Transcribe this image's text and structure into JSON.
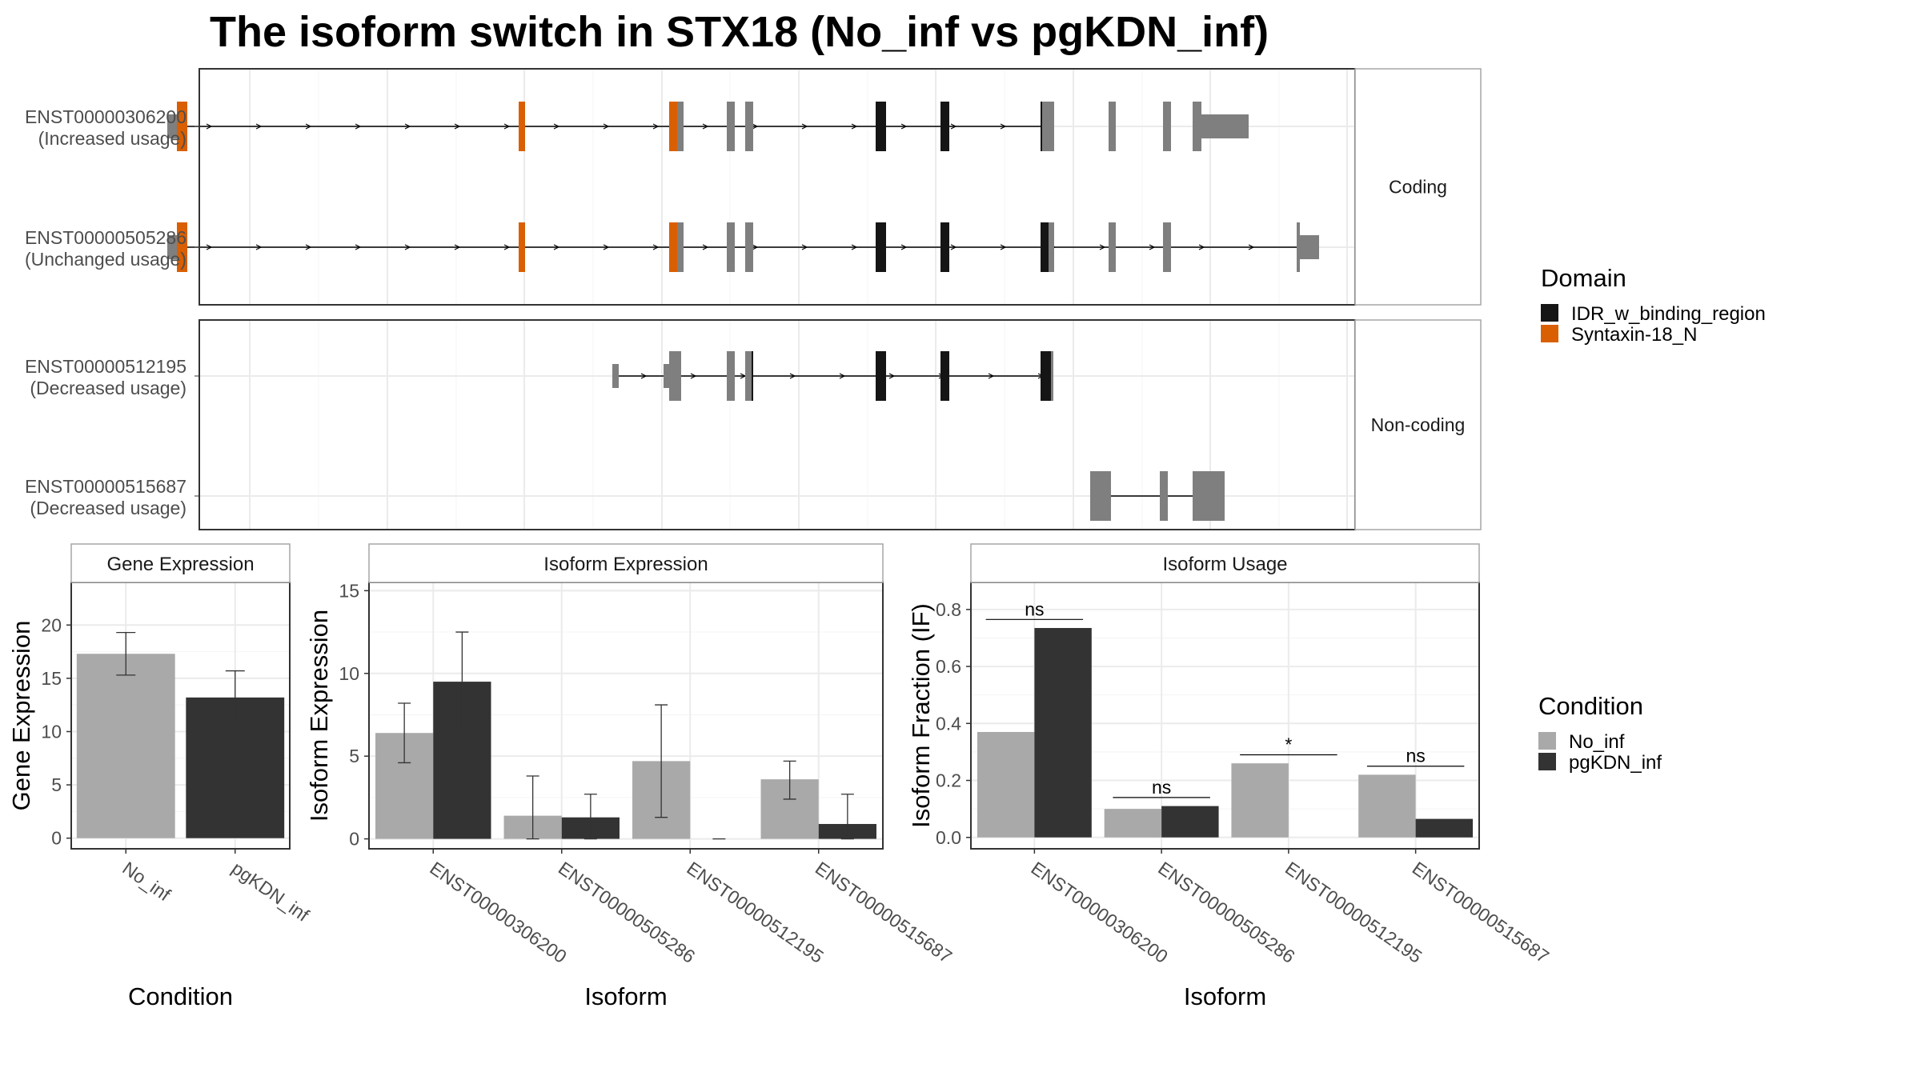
{
  "title": "The isoform switch in STX18 (No_inf vs pgKDN_inf)",
  "colors": {
    "utr": "#7f7f7f",
    "IDR_w_binding_region": "#151515",
    "Syntaxin-18_N": "#d95f02",
    "No_inf": "#a9a9a9",
    "pgKDN_inf": "#333333",
    "panel_border": "#333333",
    "grid": "#ebebeb",
    "strip_bg": "#ffffff",
    "strip_border": "#a6a6a6"
  },
  "transcripts": [
    {
      "id": "ENST00000306200",
      "usage": "(Increased usage)",
      "group": "Coding",
      "line": [
        222,
        1305
      ],
      "exons": [
        [
          209,
          221,
          "utr",
          0.5
        ],
        [
          221,
          234,
          "Syntaxin-18_N",
          1
        ],
        [
          648,
          656,
          "Syntaxin-18_N",
          1
        ],
        [
          836,
          846,
          "Syntaxin-18_N",
          1
        ],
        [
          846,
          854,
          "utr",
          1
        ],
        [
          908,
          918,
          "utr",
          1
        ],
        [
          931,
          941,
          "utr",
          1
        ],
        [
          1094,
          1107,
          "IDR_w_binding_region",
          1
        ],
        [
          1175,
          1186,
          "IDR_w_binding_region",
          1
        ],
        [
          1300,
          1302,
          "IDR_w_binding_region",
          1
        ],
        [
          1302,
          1317,
          "utr",
          1
        ],
        [
          1385,
          1394,
          "utr",
          1
        ],
        [
          1453,
          1463,
          "utr",
          1
        ],
        [
          1490,
          1501,
          "utr",
          1
        ],
        [
          1501,
          1560,
          "utr",
          0.5
        ]
      ]
    },
    {
      "id": "ENST00000505286",
      "usage": "(Unchanged usage)",
      "group": "Coding",
      "line": [
        222,
        1630
      ],
      "exons": [
        [
          209,
          221,
          "utr",
          0.5
        ],
        [
          221,
          234,
          "Syntaxin-18_N",
          1
        ],
        [
          648,
          656,
          "Syntaxin-18_N",
          1
        ],
        [
          836,
          846,
          "Syntaxin-18_N",
          1
        ],
        [
          846,
          854,
          "utr",
          1
        ],
        [
          908,
          918,
          "utr",
          1
        ],
        [
          931,
          941,
          "utr",
          1
        ],
        [
          1094,
          1107,
          "IDR_w_binding_region",
          1
        ],
        [
          1175,
          1186,
          "IDR_w_binding_region",
          1
        ],
        [
          1300,
          1310,
          "IDR_w_binding_region",
          1
        ],
        [
          1310,
          1317,
          "utr",
          1
        ],
        [
          1385,
          1394,
          "utr",
          1
        ],
        [
          1453,
          1463,
          "utr",
          1
        ],
        [
          1620,
          1624,
          "utr",
          1
        ],
        [
          1624,
          1648,
          "utr",
          0.5
        ]
      ]
    },
    {
      "id": "ENST00000512195",
      "usage": "(Decreased usage)",
      "group": "Non-coding",
      "line": [
        765,
        1315
      ],
      "exons": [
        [
          765,
          773,
          "utr",
          0.5
        ],
        [
          829,
          836,
          "utr",
          0.5
        ],
        [
          836,
          851,
          "utr",
          1
        ],
        [
          908,
          918,
          "utr",
          1
        ],
        [
          931,
          939,
          "utr",
          1
        ],
        [
          939,
          941,
          "IDR_w_binding_region",
          1
        ],
        [
          1094,
          1107,
          "IDR_w_binding_region",
          1
        ],
        [
          1175,
          1186,
          "IDR_w_binding_region",
          1
        ],
        [
          1300,
          1313,
          "IDR_w_binding_region",
          1
        ],
        [
          1313,
          1316,
          "utr",
          1
        ]
      ]
    },
    {
      "id": "ENST00000515687",
      "usage": "(Decreased usage)",
      "group": "Non-coding",
      "line": [
        1370,
        1530
      ],
      "exons": [
        [
          1362,
          1388,
          "utr",
          1
        ],
        [
          1449,
          1459,
          "utr",
          1
        ],
        [
          1490,
          1530,
          "utr",
          1
        ]
      ]
    }
  ],
  "groups": [
    "Coding",
    "Non-coding"
  ],
  "legends": {
    "domain": {
      "title": "Domain",
      "items": [
        {
          "key": "IDR_w_binding_region",
          "label": "IDR_w_binding_region"
        },
        {
          "key": "Syntaxin-18_N",
          "label": "Syntaxin-18_N"
        }
      ]
    },
    "condition": {
      "title": "Condition",
      "items": [
        {
          "key": "No_inf",
          "label": "No_inf"
        },
        {
          "key": "pgKDN_inf",
          "label": "pgKDN_inf"
        }
      ]
    }
  },
  "chart_data": [
    {
      "type": "bar",
      "strip": "Gene Expression",
      "xlabel": "Condition",
      "ylabel": "Gene Expression",
      "categories": [
        "No_inf",
        "pgKDN_inf"
      ],
      "values": [
        17.3,
        13.2
      ],
      "errors": [
        [
          15.3,
          19.3
        ],
        [
          10.7,
          15.7
        ]
      ],
      "ylim": [
        -1,
        24
      ],
      "yticks": [
        0,
        5,
        10,
        15,
        20
      ],
      "grid": true
    },
    {
      "type": "bar",
      "strip": "Isoform Expression",
      "xlabel": "Isoform",
      "ylabel": "Isoform Expression",
      "categories": [
        "ENST00000306200",
        "ENST00000505286",
        "ENST00000512195",
        "ENST00000515687"
      ],
      "series": [
        {
          "name": "No_inf",
          "values": [
            6.4,
            1.4,
            4.7,
            3.6
          ],
          "errors": [
            [
              4.6,
              8.2
            ],
            [
              0.0,
              3.8
            ],
            [
              1.3,
              8.1
            ],
            [
              2.4,
              4.7
            ]
          ]
        },
        {
          "name": "pgKDN_inf",
          "values": [
            9.5,
            1.3,
            0.0,
            0.9
          ],
          "errors": [
            [
              6.5,
              12.5
            ],
            [
              0.0,
              2.7
            ],
            [
              0.0,
              0.0
            ],
            [
              0.0,
              2.7
            ]
          ]
        }
      ],
      "ylim": [
        -0.6,
        15.5
      ],
      "yticks": [
        0,
        5,
        10,
        15
      ],
      "grid": true
    },
    {
      "type": "bar",
      "strip": "Isoform Usage",
      "xlabel": "Isoform",
      "ylabel": "Isoform Fraction (IF)",
      "categories": [
        "ENST00000306200",
        "ENST00000505286",
        "ENST00000512195",
        "ENST00000515687"
      ],
      "series": [
        {
          "name": "No_inf",
          "values": [
            0.37,
            0.1,
            0.26,
            0.22
          ]
        },
        {
          "name": "pgKDN_inf",
          "values": [
            0.735,
            0.11,
            0.0,
            0.065
          ]
        }
      ],
      "significance": [
        "ns",
        "ns",
        "*",
        "ns"
      ],
      "ylim": [
        -0.04,
        0.895
      ],
      "yticks": [
        0.0,
        0.2,
        0.4,
        0.6,
        0.8
      ],
      "ytick_labels": [
        "0.0",
        "0.2",
        "0.4",
        "0.6",
        "0.8"
      ],
      "grid": true
    }
  ]
}
